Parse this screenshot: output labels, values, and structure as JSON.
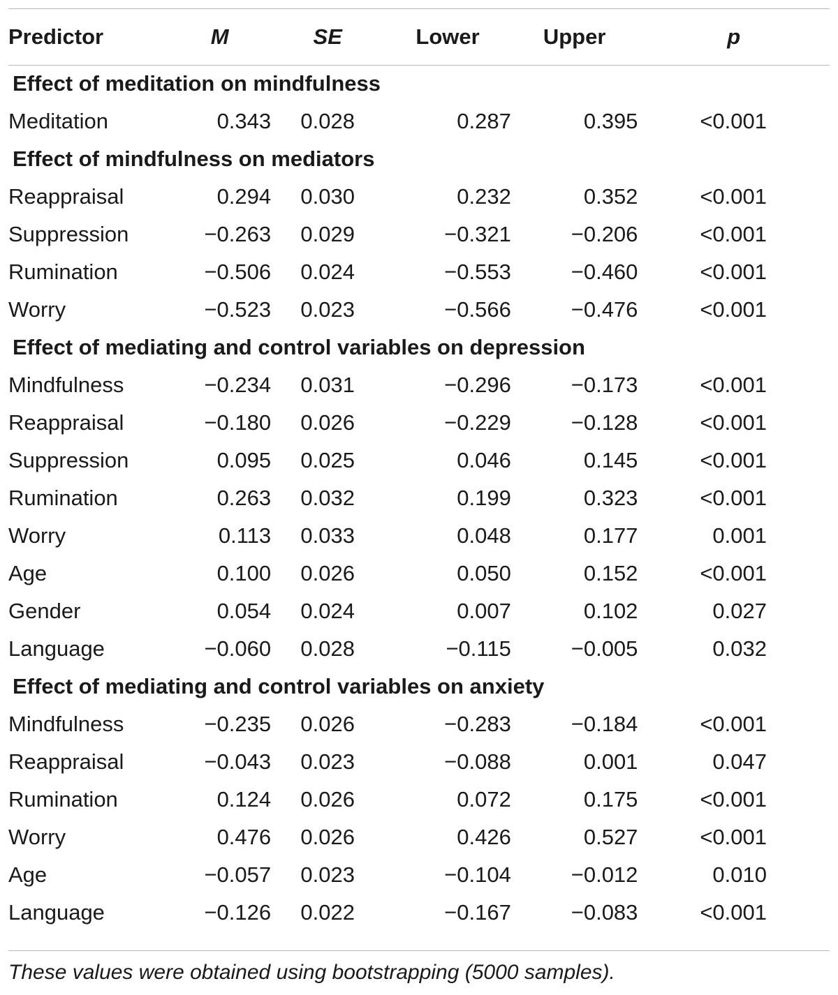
{
  "columns": {
    "predictor": "Predictor",
    "m": "M",
    "se": "SE",
    "lower": "Lower",
    "upper": "Upper",
    "p": "p"
  },
  "sections": [
    {
      "title": "Effect of meditation on mindfulness",
      "rows": [
        {
          "predictor": "Meditation",
          "m": "0.343",
          "se": "0.028",
          "lower": "0.287",
          "upper": "0.395",
          "p": "<0.001"
        }
      ]
    },
    {
      "title": "Effect of mindfulness on mediators",
      "rows": [
        {
          "predictor": "Reappraisal",
          "m": "0.294",
          "se": "0.030",
          "lower": "0.232",
          "upper": "0.352",
          "p": "<0.001"
        },
        {
          "predictor": "Suppression",
          "m": "−0.263",
          "se": "0.029",
          "lower": "−0.321",
          "upper": "−0.206",
          "p": "<0.001"
        },
        {
          "predictor": "Rumination",
          "m": "−0.506",
          "se": "0.024",
          "lower": "−0.553",
          "upper": "−0.460",
          "p": "<0.001"
        },
        {
          "predictor": "Worry",
          "m": "−0.523",
          "se": "0.023",
          "lower": "−0.566",
          "upper": "−0.476",
          "p": "<0.001"
        }
      ]
    },
    {
      "title": "Effect of mediating and control variables on depression",
      "rows": [
        {
          "predictor": "Mindfulness",
          "m": "−0.234",
          "se": "0.031",
          "lower": "−0.296",
          "upper": "−0.173",
          "p": "<0.001"
        },
        {
          "predictor": "Reappraisal",
          "m": "−0.180",
          "se": "0.026",
          "lower": "−0.229",
          "upper": "−0.128",
          "p": "<0.001"
        },
        {
          "predictor": "Suppression",
          "m": "0.095",
          "se": "0.025",
          "lower": "0.046",
          "upper": "0.145",
          "p": "<0.001"
        },
        {
          "predictor": "Rumination",
          "m": "0.263",
          "se": "0.032",
          "lower": "0.199",
          "upper": "0.323",
          "p": "<0.001"
        },
        {
          "predictor": "Worry",
          "m": "0.113",
          "se": "0.033",
          "lower": "0.048",
          "upper": "0.177",
          "p": "0.001"
        },
        {
          "predictor": "Age",
          "m": "0.100",
          "se": "0.026",
          "lower": "0.050",
          "upper": "0.152",
          "p": "<0.001"
        },
        {
          "predictor": "Gender",
          "m": "0.054",
          "se": "0.024",
          "lower": "0.007",
          "upper": "0.102",
          "p": "0.027"
        },
        {
          "predictor": "Language",
          "m": "−0.060",
          "se": "0.028",
          "lower": "−0.115",
          "upper": "−0.005",
          "p": "0.032"
        }
      ]
    },
    {
      "title": "Effect of mediating and control variables on anxiety",
      "rows": [
        {
          "predictor": "Mindfulness",
          "m": "−0.235",
          "se": "0.026",
          "lower": "−0.283",
          "upper": "−0.184",
          "p": "<0.001"
        },
        {
          "predictor": "Reappraisal",
          "m": "−0.043",
          "se": "0.023",
          "lower": "−0.088",
          "upper": "0.001",
          "p": "0.047"
        },
        {
          "predictor": "Rumination",
          "m": "0.124",
          "se": "0.026",
          "lower": "0.072",
          "upper": "0.175",
          "p": "<0.001"
        },
        {
          "predictor": "Worry",
          "m": "0.476",
          "se": "0.026",
          "lower": "0.426",
          "upper": "0.527",
          "p": "<0.001"
        },
        {
          "predictor": "Age",
          "m": "−0.057",
          "se": "0.023",
          "lower": "−0.104",
          "upper": "−0.012",
          "p": "0.010"
        },
        {
          "predictor": "Language",
          "m": "−0.126",
          "se": "0.022",
          "lower": "−0.167",
          "upper": "−0.083",
          "p": "<0.001"
        }
      ]
    }
  ],
  "footnote": "These values were obtained using bootstrapping (5000 samples)."
}
